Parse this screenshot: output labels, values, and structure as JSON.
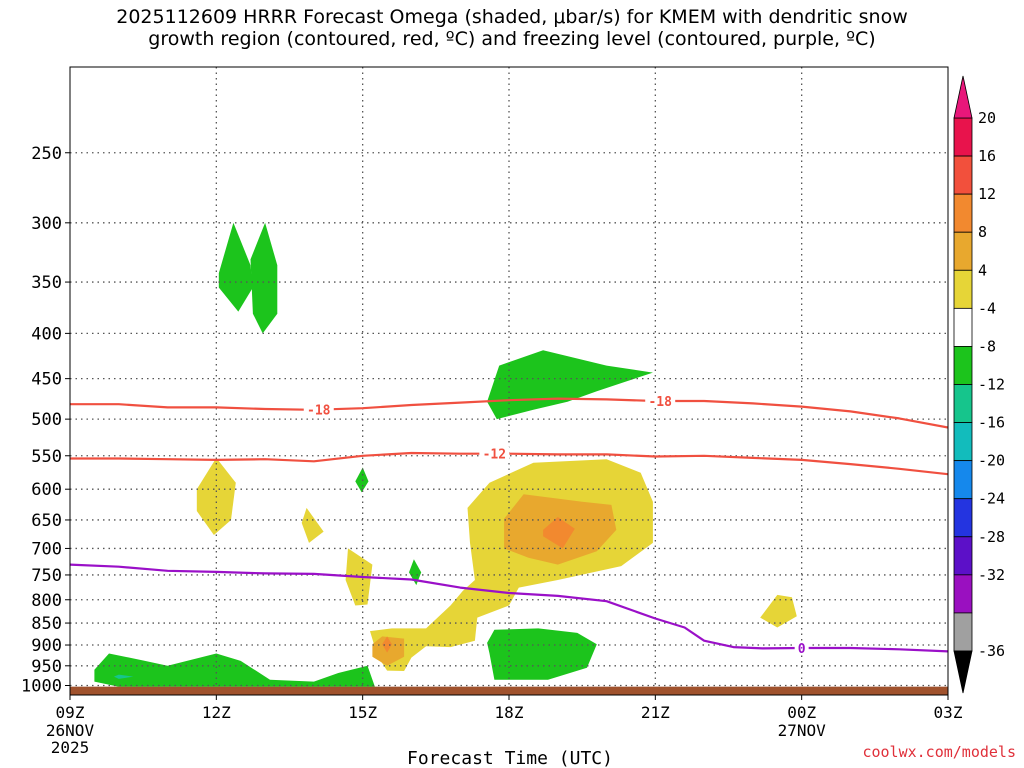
{
  "chart_data": {
    "type": "contour",
    "title_line1": "2025112609 HRRR Forecast Omega (shaded, μbar/s) for KMEM with dendritic snow",
    "title_line2": "growth region (contoured, red, ºC) and freezing level (contoured, purple, ºC)",
    "xlabel": "Forecast Time (UTC)",
    "x_ticks": [
      {
        "hour": 0,
        "label": "09Z"
      },
      {
        "hour": 3,
        "label": "12Z"
      },
      {
        "hour": 6,
        "label": "15Z"
      },
      {
        "hour": 9,
        "label": "18Z"
      },
      {
        "hour": 12,
        "label": "21Z"
      },
      {
        "hour": 15,
        "label": "00Z"
      },
      {
        "hour": 18,
        "label": "03Z"
      }
    ],
    "date_labels": [
      {
        "hour": 0,
        "line1": "26NOV",
        "line2": "2025"
      },
      {
        "hour": 15,
        "line1": "27NOV",
        "line2": ""
      }
    ],
    "y_ticks": [
      "250",
      "300",
      "350",
      "400",
      "450",
      "500",
      "550",
      "600",
      "650",
      "700",
      "750",
      "800",
      "850",
      "900",
      "950",
      "1000"
    ],
    "x_range_hours": [
      0,
      18
    ],
    "y_range_hpa": [
      200,
      1025
    ],
    "colorbar": {
      "labels": [
        "20",
        "16",
        "12",
        "8",
        "4",
        "-4",
        "-8",
        "-12",
        "-16",
        "-20",
        "-24",
        "-28",
        "-32",
        "-36"
      ],
      "colors": [
        "#e8134c",
        "#f2503c",
        "#f2892f",
        "#e8a82e",
        "#e6d537",
        "#ffffff",
        "#1cc41c",
        "#16c58c",
        "#12bcbc",
        "#1588ec",
        "#2434e0",
        "#5c10c8",
        "#9a10c0",
        "#a0a0a0"
      ],
      "over_color": "#e8177a",
      "under_color": "#000000"
    },
    "contours": [
      {
        "name": "dgz-upper",
        "label": "-18",
        "color": "#f05040",
        "points": [
          [
            0,
            481
          ],
          [
            1,
            481
          ],
          [
            2,
            485
          ],
          [
            3,
            485
          ],
          [
            4,
            487
          ],
          [
            5,
            488
          ],
          [
            6,
            486
          ],
          [
            7,
            482
          ],
          [
            8,
            479
          ],
          [
            9,
            476
          ],
          [
            10,
            474
          ],
          [
            11,
            475
          ],
          [
            12,
            477
          ],
          [
            13,
            477
          ],
          [
            14,
            480
          ],
          [
            15,
            484
          ],
          [
            16,
            490
          ],
          [
            17,
            499
          ],
          [
            18,
            511
          ]
        ],
        "label_hours": [
          5.1,
          12.1
        ]
      },
      {
        "name": "dgz-lower",
        "label": "-12",
        "color": "#f05040",
        "points": [
          [
            0,
            554
          ],
          [
            1,
            554
          ],
          [
            2,
            555
          ],
          [
            3,
            556
          ],
          [
            4,
            555
          ],
          [
            5,
            558
          ],
          [
            6,
            550
          ],
          [
            7,
            546
          ],
          [
            8,
            547
          ],
          [
            9,
            547
          ],
          [
            10,
            548
          ],
          [
            11,
            548
          ],
          [
            12,
            551
          ],
          [
            13,
            550
          ],
          [
            14,
            553
          ],
          [
            15,
            556
          ],
          [
            16,
            562
          ],
          [
            17,
            569
          ],
          [
            18,
            577
          ]
        ],
        "label_hours": [
          8.7
        ]
      },
      {
        "name": "freezing-level",
        "label": "0",
        "color": "#9a10c8",
        "points": [
          [
            0,
            730
          ],
          [
            1,
            734
          ],
          [
            2,
            742
          ],
          [
            3,
            744
          ],
          [
            4,
            747
          ],
          [
            5,
            748
          ],
          [
            6,
            754
          ],
          [
            7,
            759
          ],
          [
            8,
            775
          ],
          [
            9,
            786
          ],
          [
            10,
            792
          ],
          [
            11,
            803
          ],
          [
            12,
            840
          ],
          [
            12.6,
            860
          ],
          [
            13,
            890
          ],
          [
            13.6,
            905
          ],
          [
            14.2,
            908
          ],
          [
            15,
            907
          ],
          [
            16,
            907
          ],
          [
            17,
            910
          ],
          [
            18,
            915
          ]
        ],
        "label_hours": [
          15
        ]
      }
    ],
    "omega_regions": [
      {
        "name": "green-upward-1",
        "value": -6,
        "color": "#1cc41c",
        "poly": [
          [
            3.35,
            300
          ],
          [
            3.7,
            335
          ],
          [
            3.75,
            355
          ],
          [
            3.45,
            378
          ],
          [
            3.05,
            355
          ],
          [
            3.05,
            342
          ]
        ]
      },
      {
        "name": "green-upward-2",
        "value": -6,
        "color": "#1cc41c",
        "poly": [
          [
            4.0,
            300
          ],
          [
            4.25,
            335
          ],
          [
            4.25,
            380
          ],
          [
            3.95,
            400
          ],
          [
            3.75,
            380
          ],
          [
            3.7,
            330
          ]
        ]
      },
      {
        "name": "green-upward-3",
        "value": -6,
        "color": "#1cc41c",
        "poly": [
          [
            9.7,
            418
          ],
          [
            11,
            435
          ],
          [
            11.95,
            443
          ],
          [
            10.8,
            465
          ],
          [
            10.2,
            478
          ],
          [
            9.5,
            488
          ],
          [
            8.75,
            500
          ],
          [
            8.55,
            478
          ],
          [
            8.8,
            435
          ]
        ]
      },
      {
        "name": "green-upward-4",
        "value": -6,
        "color": "#1cc41c",
        "poly": [
          [
            6.0,
            567
          ],
          [
            6.12,
            588
          ],
          [
            5.98,
            605
          ],
          [
            5.85,
            588
          ]
        ]
      },
      {
        "name": "green-upward-5",
        "value": -6,
        "color": "#1cc41c",
        "poly": [
          [
            7.05,
            720
          ],
          [
            7.2,
            745
          ],
          [
            7.1,
            770
          ],
          [
            6.95,
            745
          ]
        ]
      },
      {
        "name": "green-upward-6",
        "value": -6,
        "color": "#1cc41c",
        "poly": [
          [
            0.5,
            960
          ],
          [
            0.8,
            920
          ],
          [
            1.5,
            937
          ],
          [
            2,
            950
          ],
          [
            3,
            920
          ],
          [
            3.5,
            938
          ],
          [
            4.1,
            985
          ],
          [
            5,
            990
          ],
          [
            5.5,
            968
          ],
          [
            6.1,
            950
          ],
          [
            6.25,
            1003
          ],
          [
            1.0,
            1003
          ],
          [
            0.5,
            990
          ]
        ]
      },
      {
        "name": "teal-upward-1",
        "value": -10,
        "color": "#16c58c",
        "poly": [
          [
            1.0,
            972
          ],
          [
            1.3,
            977
          ],
          [
            1.0,
            983
          ],
          [
            0.9,
            977
          ]
        ]
      },
      {
        "name": "green-upward-7",
        "value": -6,
        "color": "#1cc41c",
        "poly": [
          [
            8.7,
            865
          ],
          [
            9.6,
            862
          ],
          [
            10.4,
            872
          ],
          [
            10.8,
            898
          ],
          [
            10.6,
            955
          ],
          [
            9.8,
            985
          ],
          [
            8.7,
            985
          ],
          [
            8.6,
            920
          ],
          [
            8.55,
            895
          ]
        ]
      },
      {
        "name": "yellow-downward-1",
        "value": 6,
        "color": "#e6d537",
        "poly": [
          [
            3.0,
            553
          ],
          [
            3.4,
            590
          ],
          [
            3.3,
            650
          ],
          [
            2.95,
            676
          ],
          [
            2.6,
            635
          ],
          [
            2.6,
            600
          ]
        ]
      },
      {
        "name": "yellow-downward-2",
        "value": 6,
        "color": "#e6d537",
        "poly": [
          [
            4.85,
            630
          ],
          [
            5.2,
            670
          ],
          [
            4.9,
            690
          ],
          [
            4.75,
            655
          ]
        ]
      },
      {
        "name": "yellow-downward-3",
        "value": 6,
        "color": "#e6d537",
        "poly": [
          [
            5.7,
            700
          ],
          [
            6.2,
            730
          ],
          [
            6.1,
            810
          ],
          [
            5.85,
            812
          ],
          [
            5.65,
            760
          ]
        ]
      },
      {
        "name": "yellow-downward-4",
        "value": 6,
        "color": "#e6d537",
        "poly": [
          [
            14.5,
            790
          ],
          [
            14.8,
            795
          ],
          [
            14.9,
            835
          ],
          [
            14.5,
            860
          ],
          [
            14.15,
            838
          ]
        ]
      },
      {
        "name": "yellow-downward-5",
        "value": 6,
        "color": "#e6d537",
        "poly": [
          [
            9.5,
            560
          ],
          [
            11.0,
            555
          ],
          [
            11.7,
            575
          ],
          [
            11.95,
            620
          ],
          [
            11.95,
            690
          ],
          [
            11.3,
            733
          ],
          [
            10.0,
            760
          ],
          [
            9.2,
            775
          ],
          [
            9.0,
            812
          ],
          [
            8.35,
            838
          ],
          [
            8.3,
            890
          ],
          [
            7.8,
            905
          ],
          [
            7.3,
            903
          ],
          [
            7.0,
            930
          ],
          [
            6.85,
            963
          ],
          [
            6.5,
            962
          ],
          [
            6.3,
            925
          ],
          [
            6.15,
            868
          ],
          [
            6.6,
            862
          ],
          [
            7.3,
            862
          ],
          [
            7.8,
            812
          ],
          [
            8.05,
            782
          ],
          [
            8.3,
            760
          ],
          [
            8.2,
            690
          ],
          [
            8.15,
            630
          ],
          [
            8.6,
            590
          ]
        ]
      },
      {
        "name": "orange-downward-1",
        "value": 10,
        "color": "#e8a82e",
        "poly": [
          [
            9.3,
            608
          ],
          [
            10.5,
            620
          ],
          [
            11.1,
            625
          ],
          [
            11.2,
            667
          ],
          [
            10.8,
            705
          ],
          [
            10.0,
            730
          ],
          [
            9.4,
            717
          ],
          [
            8.9,
            700
          ],
          [
            8.9,
            648
          ]
        ]
      },
      {
        "name": "orange-downward-2",
        "value": 10,
        "color": "#e8a82e",
        "poly": [
          [
            6.4,
            880
          ],
          [
            6.85,
            885
          ],
          [
            6.85,
            928
          ],
          [
            6.5,
            950
          ],
          [
            6.2,
            928
          ],
          [
            6.2,
            898
          ]
        ]
      },
      {
        "name": "red-orange-downward-1",
        "value": 14,
        "color": "#f2892f",
        "poly": [
          [
            10.0,
            645
          ],
          [
            10.35,
            665
          ],
          [
            10.1,
            700
          ],
          [
            9.7,
            678
          ],
          [
            9.7,
            667
          ]
        ]
      },
      {
        "name": "red-orange-downward-2",
        "value": 14,
        "color": "#f2892f",
        "poly": [
          [
            6.5,
            880
          ],
          [
            6.6,
            898
          ],
          [
            6.5,
            918
          ],
          [
            6.4,
            898
          ]
        ]
      }
    ],
    "surface_color": "#a0522d",
    "credit": "coolwx.com/models"
  }
}
